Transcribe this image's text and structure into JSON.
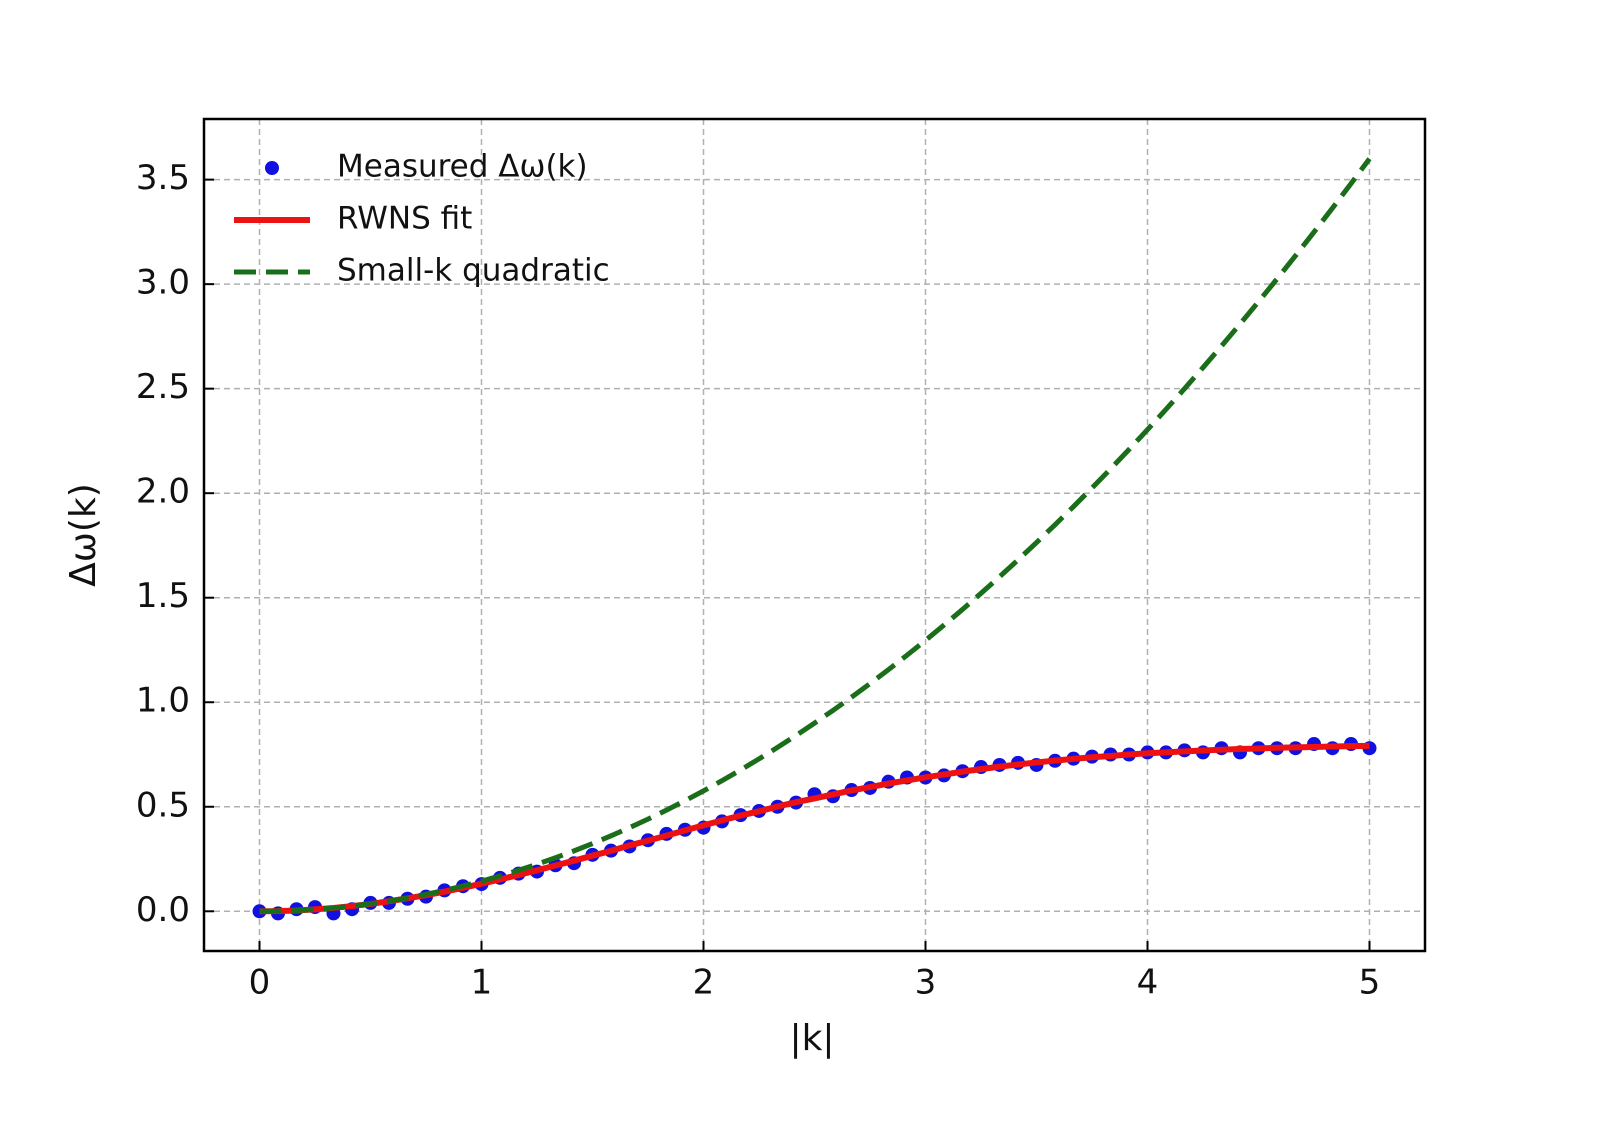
{
  "chart_data": {
    "type": "line",
    "x_label": "|k|",
    "y_label": "Δω(k)",
    "xlim": [
      -0.25,
      5.25
    ],
    "ylim": [
      -0.19,
      3.79
    ],
    "xticks": [
      0,
      1,
      2,
      3,
      4,
      5
    ],
    "yticks": [
      {
        "value": 0,
        "label": "0.0"
      },
      {
        "value": 0.5,
        "label": "0.5"
      },
      {
        "value": 1,
        "label": "1.0"
      },
      {
        "value": 1.5,
        "label": "1.5"
      },
      {
        "value": 2,
        "label": "2.0"
      },
      {
        "value": 2.5,
        "label": "2.5"
      },
      {
        "value": 3,
        "label": "3.0"
      },
      {
        "value": 3.5,
        "label": "3.5"
      }
    ],
    "grid": true,
    "legend": "upper left",
    "x": [
      0,
      0.0833,
      0.1667,
      0.25,
      0.3333,
      0.4167,
      0.5,
      0.5833,
      0.6667,
      0.75,
      0.8333,
      0.9167,
      1,
      1.0833,
      1.1667,
      1.25,
      1.3333,
      1.4167,
      1.5,
      1.5833,
      1.6667,
      1.75,
      1.8333,
      1.9167,
      2,
      2.0833,
      2.1667,
      2.25,
      2.3333,
      2.4167,
      2.5,
      2.5833,
      2.6667,
      2.75,
      2.8333,
      2.9167,
      3,
      3.0833,
      3.1667,
      3.25,
      3.3333,
      3.4167,
      3.5,
      3.5833,
      3.6667,
      3.75,
      3.8333,
      3.9167,
      4,
      4.0833,
      4.1667,
      4.25,
      4.3333,
      4.4167,
      4.5,
      4.5833,
      4.6667,
      4.75,
      4.8333,
      4.9167,
      5
    ],
    "series": [
      {
        "name": "Measured Δω(k)",
        "mark": "scatter",
        "color": "#1010e0",
        "values": [
          0,
          -0.01,
          0.01,
          0.02,
          -0.01,
          0.01,
          0.04,
          0.04,
          0.06,
          0.07,
          0.1,
          0.12,
          0.13,
          0.16,
          0.18,
          0.19,
          0.22,
          0.23,
          0.27,
          0.29,
          0.31,
          0.34,
          0.37,
          0.39,
          0.4,
          0.43,
          0.46,
          0.48,
          0.5,
          0.52,
          0.56,
          0.55,
          0.58,
          0.59,
          0.62,
          0.64,
          0.64,
          0.65,
          0.67,
          0.69,
          0.7,
          0.71,
          0.7,
          0.72,
          0.73,
          0.74,
          0.75,
          0.75,
          0.76,
          0.76,
          0.77,
          0.76,
          0.78,
          0.76,
          0.78,
          0.78,
          0.78,
          0.8,
          0.78,
          0.8,
          0.78
        ]
      },
      {
        "name": "RWNS fit",
        "mark": "line",
        "dash": "solid",
        "color": "#ee1111",
        "values": [
          0,
          0.001,
          0.004,
          0.009,
          0.016,
          0.025,
          0.035,
          0.048,
          0.062,
          0.077,
          0.094,
          0.112,
          0.132,
          0.152,
          0.174,
          0.196,
          0.219,
          0.242,
          0.266,
          0.289,
          0.315,
          0.338,
          0.362,
          0.387,
          0.411,
          0.435,
          0.458,
          0.478,
          0.501,
          0.522,
          0.54,
          0.559,
          0.578,
          0.594,
          0.611,
          0.626,
          0.641,
          0.654,
          0.668,
          0.68,
          0.692,
          0.702,
          0.712,
          0.721,
          0.729,
          0.737,
          0.743,
          0.75,
          0.756,
          0.76,
          0.765,
          0.769,
          0.773,
          0.776,
          0.779,
          0.782,
          0.784,
          0.786,
          0.788,
          0.79,
          0.791
        ]
      },
      {
        "name": "Small-k quadratic",
        "mark": "line",
        "dash": "dashed",
        "color": "#1a6e1a",
        "values": [
          0,
          0.001,
          0.004,
          0.009,
          0.016,
          0.025,
          0.036,
          0.049,
          0.064,
          0.081,
          0.1,
          0.121,
          0.144,
          0.169,
          0.196,
          0.225,
          0.256,
          0.289,
          0.324,
          0.361,
          0.4,
          0.441,
          0.484,
          0.529,
          0.576,
          0.625,
          0.676,
          0.729,
          0.784,
          0.841,
          0.9,
          0.961,
          1.024,
          1.089,
          1.156,
          1.225,
          1.296,
          1.369,
          1.444,
          1.521,
          1.6,
          1.681,
          1.764,
          1.849,
          1.936,
          2.025,
          2.116,
          2.209,
          2.304,
          2.401,
          2.5,
          2.601,
          2.704,
          2.809,
          2.916,
          3.025,
          3.136,
          3.249,
          3.364,
          3.481,
          3.6
        ]
      }
    ]
  }
}
